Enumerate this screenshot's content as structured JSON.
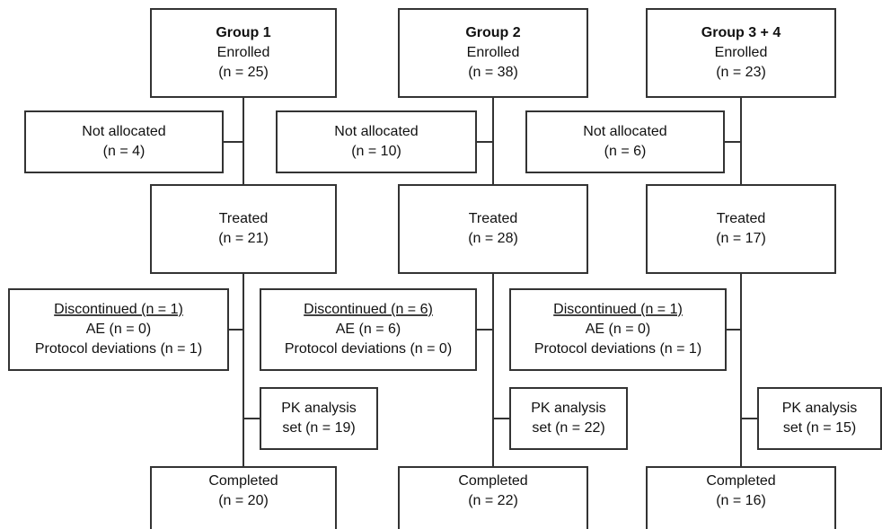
{
  "groups": [
    {
      "boxes": [
        {
          "lines": [
            "Group 1",
            "Enrolled",
            "(n = 25)"
          ]
        },
        {
          "lines": [
            "Not allocated",
            "(n = 4)"
          ]
        },
        {
          "lines": [
            "Treated",
            "(n = 21)"
          ]
        },
        {
          "lines": [
            "Discontinued (n = 1)",
            "AE (n = 0)",
            "Protocol deviations (n = 1)"
          ]
        },
        {
          "lines": [
            "PK analysis",
            "set (n = 19)"
          ]
        },
        {
          "lines": [
            "Completed",
            "(n = 20)"
          ]
        }
      ]
    },
    {
      "boxes": [
        {
          "lines": [
            "Group 2",
            "Enrolled",
            "(n = 38)"
          ]
        },
        {
          "lines": [
            "Not allocated",
            "(n = 10)"
          ]
        },
        {
          "lines": [
            "Treated",
            "(n = 28)"
          ]
        },
        {
          "lines": [
            "Discontinued (n = 6)",
            "AE (n = 6)",
            "Protocol deviations (n = 0)"
          ]
        },
        {
          "lines": [
            "PK analysis",
            "set (n = 22)"
          ]
        },
        {
          "lines": [
            "Completed",
            "(n = 22)"
          ]
        }
      ]
    },
    {
      "boxes": [
        {
          "lines": [
            "Group 3 + 4",
            "Enrolled",
            "(n = 23)"
          ]
        },
        {
          "lines": [
            "Not allocated",
            "(n = 6)"
          ]
        },
        {
          "lines": [
            "Treated",
            "(n = 17)"
          ]
        },
        {
          "lines": [
            "Discontinued (n = 1)",
            "AE (n = 0)",
            "Protocol deviations (n = 1)"
          ]
        },
        {
          "lines": [
            "PK analysis",
            "set (n = 15)"
          ]
        },
        {
          "lines": [
            "Completed",
            "(n = 16)"
          ]
        }
      ]
    }
  ]
}
